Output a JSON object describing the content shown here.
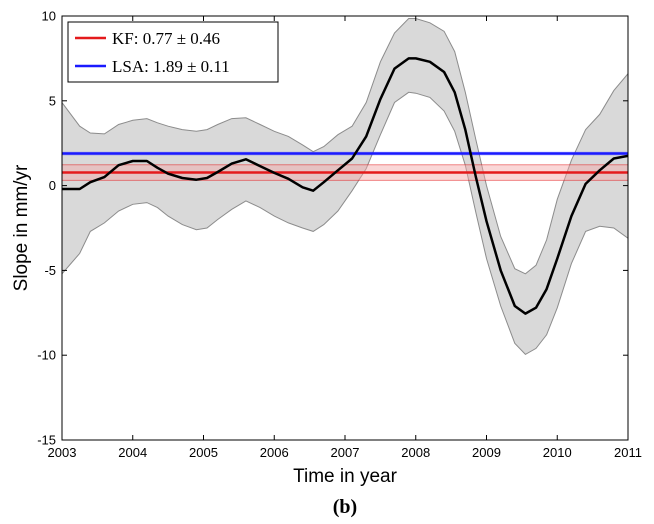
{
  "chart_data": {
    "type": "line",
    "xlabel": "Time in year",
    "ylabel": "Slope in mm/yr",
    "caption": "(b)",
    "xlim": [
      2003,
      2011
    ],
    "ylim": [
      -15,
      10
    ],
    "xticks": [
      2003,
      2004,
      2005,
      2006,
      2007,
      2008,
      2009,
      2010,
      2011
    ],
    "yticks": [
      -15,
      -10,
      -5,
      0,
      5,
      10
    ],
    "legend_position": "top-left",
    "colors": {
      "kf": "#e41a1c",
      "kf_band": "#f4a6a6",
      "lsa": "#1a1aff",
      "series": "#000000",
      "uncertainty": "#d9d9d9",
      "uncertainty_edge": "#8c8c8c"
    },
    "legend": [
      {
        "label": "KF: 0.77 ± 0.46",
        "color": "#e41a1c"
      },
      {
        "label": "LSA: 1.89 ± 0.11",
        "color": "#1a1aff"
      }
    ],
    "reference_lines": {
      "kf": {
        "value": 0.77,
        "uncertainty": 0.46
      },
      "lsa": {
        "value": 1.89,
        "uncertainty": 0.11
      }
    },
    "series": [
      {
        "x": [
          2003.0,
          2003.25,
          2003.4,
          2003.6,
          2003.8,
          2004.0,
          2004.2,
          2004.35,
          2004.5,
          2004.7,
          2004.9,
          2005.05,
          2005.2,
          2005.4,
          2005.6,
          2005.8,
          2006.0,
          2006.2,
          2006.4,
          2006.55,
          2006.7,
          2006.9,
          2007.1,
          2007.3,
          2007.5,
          2007.7,
          2007.9,
          2008.0,
          2008.2,
          2008.4,
          2008.55,
          2008.7,
          2008.85,
          2009.0,
          2009.2,
          2009.4,
          2009.55,
          2009.7,
          2009.85,
          2010.0,
          2010.2,
          2010.4,
          2010.6,
          2010.8,
          2011.0
        ],
        "y": [
          -0.2,
          -0.2,
          0.2,
          0.5,
          1.2,
          1.45,
          1.45,
          1.05,
          0.7,
          0.45,
          0.35,
          0.45,
          0.8,
          1.3,
          1.55,
          1.15,
          0.75,
          0.4,
          -0.1,
          -0.3,
          0.2,
          0.9,
          1.6,
          2.9,
          5.1,
          6.9,
          7.5,
          7.5,
          7.3,
          6.7,
          5.5,
          3.3,
          0.5,
          -2.1,
          -5.0,
          -7.1,
          -7.55,
          -7.2,
          -6.1,
          -4.3,
          -1.8,
          0.1,
          0.9,
          1.6,
          1.75
        ],
        "upper": [
          4.9,
          3.5,
          3.1,
          3.05,
          3.6,
          3.85,
          3.95,
          3.7,
          3.5,
          3.3,
          3.2,
          3.3,
          3.6,
          3.95,
          4.0,
          3.6,
          3.2,
          2.9,
          2.4,
          2.0,
          2.3,
          3.0,
          3.5,
          4.9,
          7.3,
          9.0,
          9.85,
          9.85,
          9.6,
          9.1,
          7.9,
          5.5,
          2.7,
          0.0,
          -3.0,
          -4.9,
          -5.2,
          -4.7,
          -3.2,
          -0.8,
          1.5,
          3.3,
          4.2,
          5.6,
          6.6
        ],
        "lower": [
          -5.2,
          -4.0,
          -2.7,
          -2.2,
          -1.5,
          -1.1,
          -1.0,
          -1.3,
          -1.8,
          -2.3,
          -2.6,
          -2.5,
          -2.0,
          -1.4,
          -0.9,
          -1.3,
          -1.8,
          -2.2,
          -2.5,
          -2.7,
          -2.3,
          -1.5,
          -0.3,
          1.0,
          3.0,
          4.9,
          5.5,
          5.45,
          5.2,
          4.4,
          3.2,
          1.2,
          -1.6,
          -4.3,
          -7.1,
          -9.3,
          -9.95,
          -9.6,
          -8.8,
          -7.2,
          -4.6,
          -2.7,
          -2.4,
          -2.5,
          -3.1
        ]
      }
    ]
  }
}
